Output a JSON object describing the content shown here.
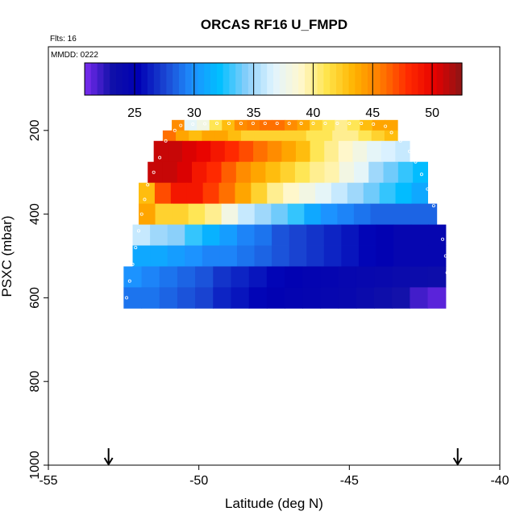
{
  "chart_data": {
    "type": "heatmap",
    "title": "ORCAS RF16 U_FMPD",
    "flights_note": "Flts: 16",
    "date_note": "MMDD: 0222",
    "xlabel": "Latitude (deg N)",
    "ylabel": "PSXC (mbar)",
    "xlim": [
      -55,
      -40
    ],
    "ylim": [
      1000,
      0
    ],
    "x_ticks": [
      -55,
      -50,
      -45,
      -40
    ],
    "x_tick_labels": [
      "-55",
      "-50",
      "-45",
      "-40"
    ],
    "y_ticks": [
      200,
      400,
      600,
      800,
      1000
    ],
    "y_tick_labels": [
      "200",
      "400",
      "600",
      "800",
      "1000"
    ],
    "colorbar": {
      "min": 20.8,
      "max": 52.5,
      "ticks": [
        25,
        30,
        35,
        40,
        45,
        50
      ],
      "tick_labels": [
        "25",
        "30",
        "35",
        "40",
        "45",
        "50"
      ],
      "colors": [
        "#7b2cf0",
        "#1010a8",
        "#0000b4",
        "#1a46d2",
        "#1e90ff",
        "#00bfff",
        "#87cefa",
        "#e0f4ff",
        "#fff8d0",
        "#ffe44a",
        "#ffb300",
        "#ff7a00",
        "#ff2a00",
        "#e60000",
        "#8b1515"
      ]
    },
    "bins": [
      {
        "p_min": 175,
        "p_max": 200,
        "lat_min": -50.9,
        "lat_max": -43.4,
        "values": [
          45,
          37,
          38,
          41,
          43,
          45,
          45.5,
          46,
          46,
          45,
          44,
          42,
          41,
          40,
          41,
          43,
          44,
          44
        ]
      },
      {
        "p_min": 200,
        "p_max": 225,
        "lat_min": -51.2,
        "lat_max": -43.4,
        "values": [
          46,
          44,
          43,
          44,
          44,
          43,
          42,
          42,
          42,
          42,
          42,
          41,
          41,
          40,
          40,
          41,
          42,
          43
        ]
      },
      {
        "p_min": 225,
        "p_max": 275,
        "lat_min": -51.5,
        "lat_max": -43.0,
        "values": [
          51,
          51,
          50.5,
          50,
          49,
          48,
          47,
          46,
          45,
          44,
          43,
          41,
          40,
          39,
          38,
          37,
          36.5,
          36
        ]
      },
      {
        "p_min": 275,
        "p_max": 325,
        "lat_min": -51.7,
        "lat_max": -42.4,
        "values": [
          51,
          51,
          50.5,
          49,
          48,
          46.5,
          45,
          44,
          43,
          42,
          41,
          40,
          39.5,
          38,
          37,
          35,
          34,
          33,
          32
        ]
      },
      {
        "p_min": 325,
        "p_max": 375,
        "lat_min": -52.0,
        "lat_max": -42.4,
        "values": [
          43,
          47,
          49,
          49,
          47.5,
          46,
          44,
          42,
          40,
          39,
          38,
          37,
          36,
          35,
          34,
          33,
          32,
          31
        ]
      },
      {
        "p_min": 375,
        "p_max": 425,
        "lat_min": -52.0,
        "lat_max": -42.1,
        "values": [
          44,
          42,
          42,
          41,
          40,
          38,
          36,
          35,
          34,
          33,
          31,
          30,
          29.5,
          29,
          28.5,
          28.5,
          28.5,
          28.5
        ]
      },
      {
        "p_min": 425,
        "p_max": 475,
        "lat_min": -52.2,
        "lat_max": -41.8,
        "values": [
          36,
          35,
          34.5,
          33,
          31.5,
          30.5,
          29.5,
          29,
          28,
          27.5,
          27,
          26.5,
          26,
          25.5,
          25,
          24.5,
          24.5,
          24.5
        ]
      },
      {
        "p_min": 475,
        "p_max": 525,
        "lat_min": -52.2,
        "lat_max": -41.8,
        "values": [
          31,
          31,
          30.5,
          30,
          29.5,
          29.5,
          29,
          28.5,
          28,
          27.5,
          27,
          26.5,
          26,
          25.5,
          25,
          24.5,
          24.5,
          24.5
        ]
      },
      {
        "p_min": 525,
        "p_max": 575,
        "lat_min": -52.5,
        "lat_max": -41.8,
        "values": [
          30,
          29.5,
          29,
          28.5,
          28,
          27,
          26.5,
          26,
          25.5,
          25,
          24.8,
          24.6,
          24.4,
          24.2,
          24,
          23.8,
          23.6,
          23.5
        ]
      },
      {
        "p_min": 575,
        "p_max": 625,
        "lat_min": -52.5,
        "lat_max": -41.8,
        "values": [
          29,
          29,
          28.5,
          28,
          27.5,
          26.5,
          26,
          25.5,
          25,
          24.8,
          24.6,
          24.4,
          24.2,
          23.8,
          23.4,
          23,
          22,
          21.5
        ]
      }
    ],
    "track_points": [
      {
        "lat": -50.8,
        "p": 200
      },
      {
        "lat": -51.1,
        "p": 225
      },
      {
        "lat": -51.3,
        "p": 265
      },
      {
        "lat": -51.5,
        "p": 300
      },
      {
        "lat": -51.7,
        "p": 330
      },
      {
        "lat": -51.8,
        "p": 365
      },
      {
        "lat": -51.9,
        "p": 400
      },
      {
        "lat": -52.0,
        "p": 440
      },
      {
        "lat": -52.1,
        "p": 480
      },
      {
        "lat": -52.2,
        "p": 520
      },
      {
        "lat": -52.3,
        "p": 560
      },
      {
        "lat": -52.4,
        "p": 600
      },
      {
        "lat": -52.45,
        "p": 640
      },
      {
        "lat": -50.6,
        "p": 188
      },
      {
        "lat": -50.2,
        "p": 185
      },
      {
        "lat": -49.8,
        "p": 184
      },
      {
        "lat": -49.4,
        "p": 183
      },
      {
        "lat": -49.0,
        "p": 183
      },
      {
        "lat": -48.6,
        "p": 183
      },
      {
        "lat": -48.2,
        "p": 183
      },
      {
        "lat": -47.8,
        "p": 183
      },
      {
        "lat": -47.4,
        "p": 183
      },
      {
        "lat": -47.0,
        "p": 183
      },
      {
        "lat": -46.6,
        "p": 183
      },
      {
        "lat": -46.2,
        "p": 183
      },
      {
        "lat": -45.8,
        "p": 183
      },
      {
        "lat": -45.4,
        "p": 183
      },
      {
        "lat": -45.0,
        "p": 183
      },
      {
        "lat": -44.6,
        "p": 183
      },
      {
        "lat": -44.2,
        "p": 185
      },
      {
        "lat": -43.8,
        "p": 190
      },
      {
        "lat": -43.6,
        "p": 205
      },
      {
        "lat": -43.3,
        "p": 225
      },
      {
        "lat": -43.0,
        "p": 250
      },
      {
        "lat": -42.8,
        "p": 275
      },
      {
        "lat": -42.6,
        "p": 305
      },
      {
        "lat": -42.4,
        "p": 340
      },
      {
        "lat": -42.2,
        "p": 380
      },
      {
        "lat": -42.0,
        "p": 420
      },
      {
        "lat": -41.9,
        "p": 460
      },
      {
        "lat": -41.8,
        "p": 500
      },
      {
        "lat": -41.75,
        "p": 540
      },
      {
        "lat": -41.7,
        "p": 580
      },
      {
        "lat": -41.65,
        "p": 620
      }
    ],
    "arrow_markers_lat": [
      -53.0,
      -41.4
    ],
    "grid": false,
    "legend": "colorbar at top"
  }
}
